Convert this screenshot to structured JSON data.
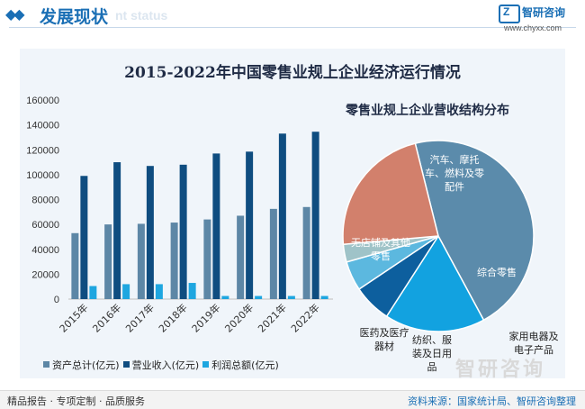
{
  "header": {
    "title": "发展现状",
    "subtitle": "nt status",
    "logo_letter": "Z",
    "logo_name": "智研咨询",
    "logo_url": "www.chyxx.com"
  },
  "watermark": "智研咨询",
  "footer": {
    "left": "精品报告 · 专项定制 · 品质服务",
    "right": "资料来源：国家统计局、智研咨询整理"
  },
  "chart_data": [
    {
      "type": "bar",
      "title": "2015-2022年中国零售业规上企业经济运行情况",
      "categories": [
        "2015年",
        "2016年",
        "2017年",
        "2018年",
        "2019年",
        "2020年",
        "2021年",
        "2022年"
      ],
      "series": [
        {
          "name": "资产总计(亿元)",
          "color": "#5d87a6",
          "values": [
            53000,
            60000,
            60500,
            61500,
            64000,
            67000,
            72500,
            74000
          ]
        },
        {
          "name": "营业收入(亿元)",
          "color": "#0f4d80",
          "values": [
            99000,
            110000,
            107000,
            108000,
            117000,
            118500,
            133000,
            134500
          ]
        },
        {
          "name": "利润总额(亿元)",
          "color": "#1ea6e0",
          "values": [
            10500,
            12000,
            12000,
            13000,
            2500,
            2500,
            2500,
            2500
          ]
        }
      ],
      "yticks": [
        0,
        20000,
        40000,
        60000,
        80000,
        100000,
        120000,
        140000,
        160000
      ],
      "ylim": [
        0,
        160000
      ],
      "legend": "bottom",
      "grid": false
    },
    {
      "type": "pie",
      "title": "零售业规上企业营收结构分布",
      "slices": [
        {
          "label": "汽车、摩托车、燃料及零配件",
          "value": 46,
          "color": "#5b8bab"
        },
        {
          "label": "综合零售",
          "value": 17,
          "color": "#12a2e0"
        },
        {
          "label": "家用电器及电子产品",
          "value": 6.5,
          "color": "#0d5f9e"
        },
        {
          "label": "纺织、服装及日用品",
          "value": 5,
          "color": "#5cb8df"
        },
        {
          "label": "医药及医疗器材",
          "value": 3,
          "color": "#9fc3c8"
        },
        {
          "label": "无店铺及其他零售",
          "value": 22.5,
          "color": "#d2806c"
        }
      ]
    }
  ]
}
